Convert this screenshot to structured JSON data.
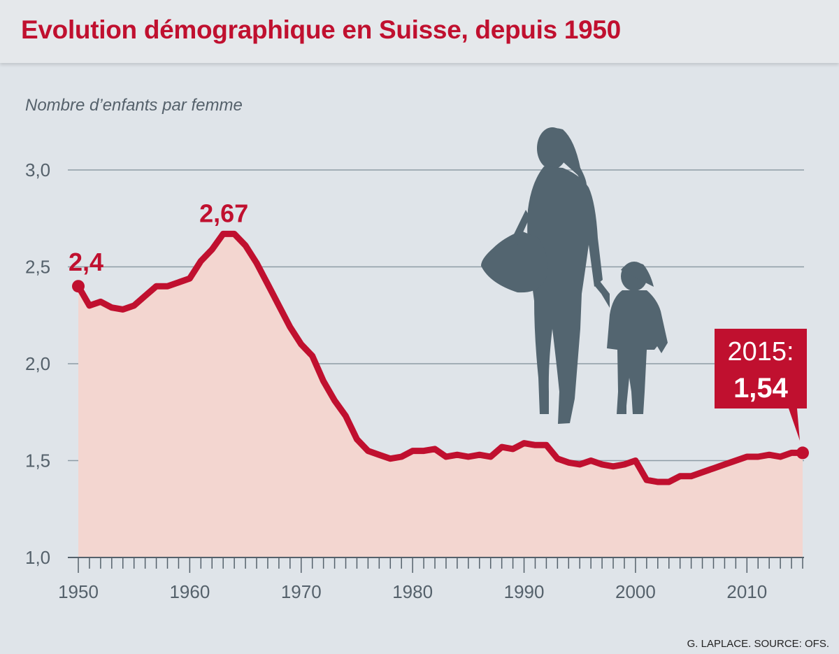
{
  "title": "Evolution démographique en Suisse, depuis 1950",
  "source": "G. LAPLACE. SOURCE: OFS.",
  "colors": {
    "accent": "#c0102f",
    "fill": "#f3d6d0",
    "grid": "#8e9ba5",
    "text": "#55616b",
    "silhouette": "#536570"
  },
  "illustration": "mother-and-child-silhouette",
  "chart_data": {
    "type": "area",
    "title": "Evolution démographique en Suisse, depuis 1950",
    "ylabel": "Nombre d’enfants par femme",
    "xlabel": "",
    "ylim": [
      1.0,
      3.0
    ],
    "yticks": [
      "1,0",
      "1,5",
      "2,0",
      "2,5",
      "3,0"
    ],
    "ytick_values": [
      1.0,
      1.5,
      2.0,
      2.5,
      3.0
    ],
    "xlim": [
      1950,
      2015
    ],
    "xticks": [
      "1950",
      "1960",
      "1970",
      "1980",
      "1990",
      "2000",
      "2010"
    ],
    "xtick_values": [
      1950,
      1960,
      1970,
      1980,
      1990,
      2000,
      2010
    ],
    "grid": true,
    "x": [
      1950,
      1951,
      1952,
      1953,
      1954,
      1955,
      1956,
      1957,
      1958,
      1959,
      1960,
      1961,
      1962,
      1963,
      1964,
      1965,
      1966,
      1967,
      1968,
      1969,
      1970,
      1971,
      1972,
      1973,
      1974,
      1975,
      1976,
      1977,
      1978,
      1979,
      1980,
      1981,
      1982,
      1983,
      1984,
      1985,
      1986,
      1987,
      1988,
      1989,
      1990,
      1991,
      1992,
      1993,
      1994,
      1995,
      1996,
      1997,
      1998,
      1999,
      2000,
      2001,
      2002,
      2003,
      2004,
      2005,
      2006,
      2007,
      2008,
      2009,
      2010,
      2011,
      2012,
      2013,
      2014,
      2015
    ],
    "values": [
      2.4,
      2.3,
      2.32,
      2.29,
      2.28,
      2.3,
      2.35,
      2.4,
      2.4,
      2.42,
      2.44,
      2.53,
      2.59,
      2.67,
      2.67,
      2.61,
      2.52,
      2.41,
      2.3,
      2.19,
      2.1,
      2.04,
      1.91,
      1.81,
      1.73,
      1.61,
      1.55,
      1.53,
      1.51,
      1.52,
      1.55,
      1.55,
      1.56,
      1.52,
      1.53,
      1.52,
      1.53,
      1.52,
      1.57,
      1.56,
      1.59,
      1.58,
      1.58,
      1.51,
      1.49,
      1.48,
      1.5,
      1.48,
      1.47,
      1.48,
      1.5,
      1.4,
      1.39,
      1.39,
      1.42,
      1.42,
      1.44,
      1.46,
      1.48,
      1.5,
      1.52,
      1.52,
      1.53,
      1.52,
      1.54,
      1.54
    ],
    "annotations": [
      {
        "label": "2,4",
        "x": 1950,
        "y": 2.4
      },
      {
        "label": "2,67",
        "x": 1963.5,
        "y": 2.67
      },
      {
        "label_year": "2015:",
        "label_value": "1,54",
        "x": 2015,
        "y": 1.54
      }
    ]
  }
}
